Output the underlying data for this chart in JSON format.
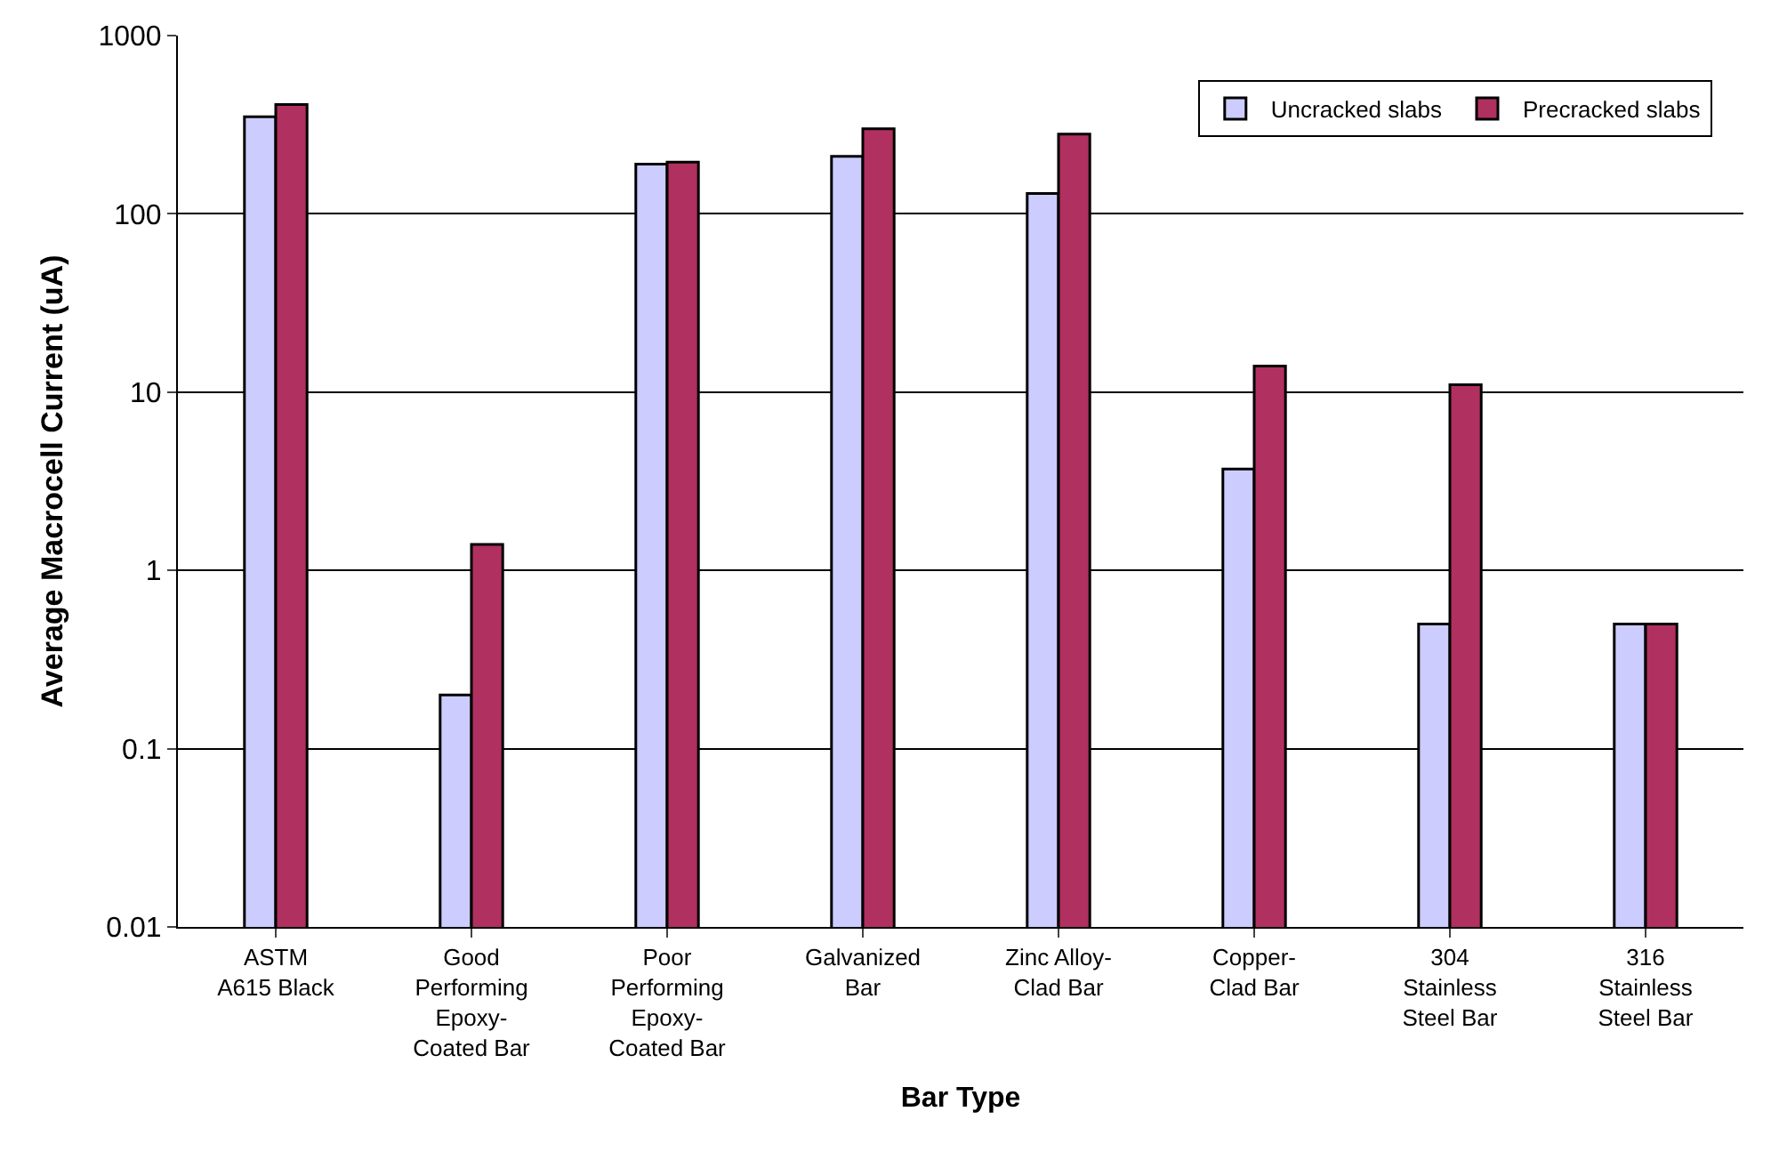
{
  "chart_data": {
    "type": "bar",
    "xlabel": "Bar Type",
    "ylabel": "Average Macrocell Current (uA)",
    "categories": [
      "ASTM\nA615 Black",
      "Good\nPerforming\nEpoxy-\nCoated Bar",
      "Poor\nPerforming\nEpoxy-\nCoated Bar",
      "Galvanized\nBar",
      "Zinc Alloy-\nClad Bar",
      "Copper-\nClad Bar",
      "304\nStainless\nSteel Bar",
      "316\nStainless\nSteel Bar"
    ],
    "series": [
      {
        "name": "Uncracked slabs",
        "color": "#ccccff",
        "values": [
          350,
          0.2,
          190,
          210,
          130,
          3.7,
          0.5,
          0.5
        ]
      },
      {
        "name": "Precracked slabs",
        "color": "#b03060",
        "values": [
          410,
          1.4,
          195,
          300,
          280,
          14,
          11,
          0.5
        ]
      }
    ],
    "log": true,
    "ylim": [
      0.01,
      1000
    ],
    "yticks": [
      0.01,
      0.1,
      1,
      10,
      100,
      1000
    ],
    "grid": "y",
    "legend": "top right"
  }
}
